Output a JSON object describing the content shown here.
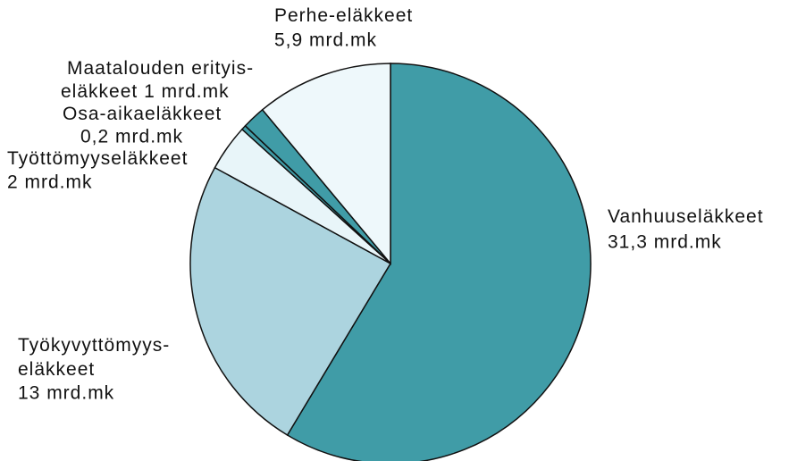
{
  "chart_data": {
    "type": "pie",
    "categories": [
      [
        "Vanhuuseläkkeet"
      ],
      [
        "Työkyvyttömyys-",
        "eläkkeet"
      ],
      [
        "Työttömyyseläkkeet"
      ],
      [
        "Osa-aikaeläkkeet"
      ],
      [
        "Maatalouden erityis-",
        "eläkkeet"
      ],
      [
        "Perhe-eläkkeet"
      ]
    ],
    "values": [
      31.3,
      13,
      2,
      0.2,
      1,
      5.9
    ],
    "value_labels": [
      "31,3 mrd.mk",
      "13 mrd.mk",
      "2 mrd.mk",
      "0,2 mrd.mk",
      "1 mrd.mk",
      "5,9 mrd.mk"
    ],
    "colors": [
      "#409ca7",
      "#acd4df",
      "#e8f5f9",
      "#409ca7",
      "#409ca7",
      "#eef8fb"
    ]
  }
}
